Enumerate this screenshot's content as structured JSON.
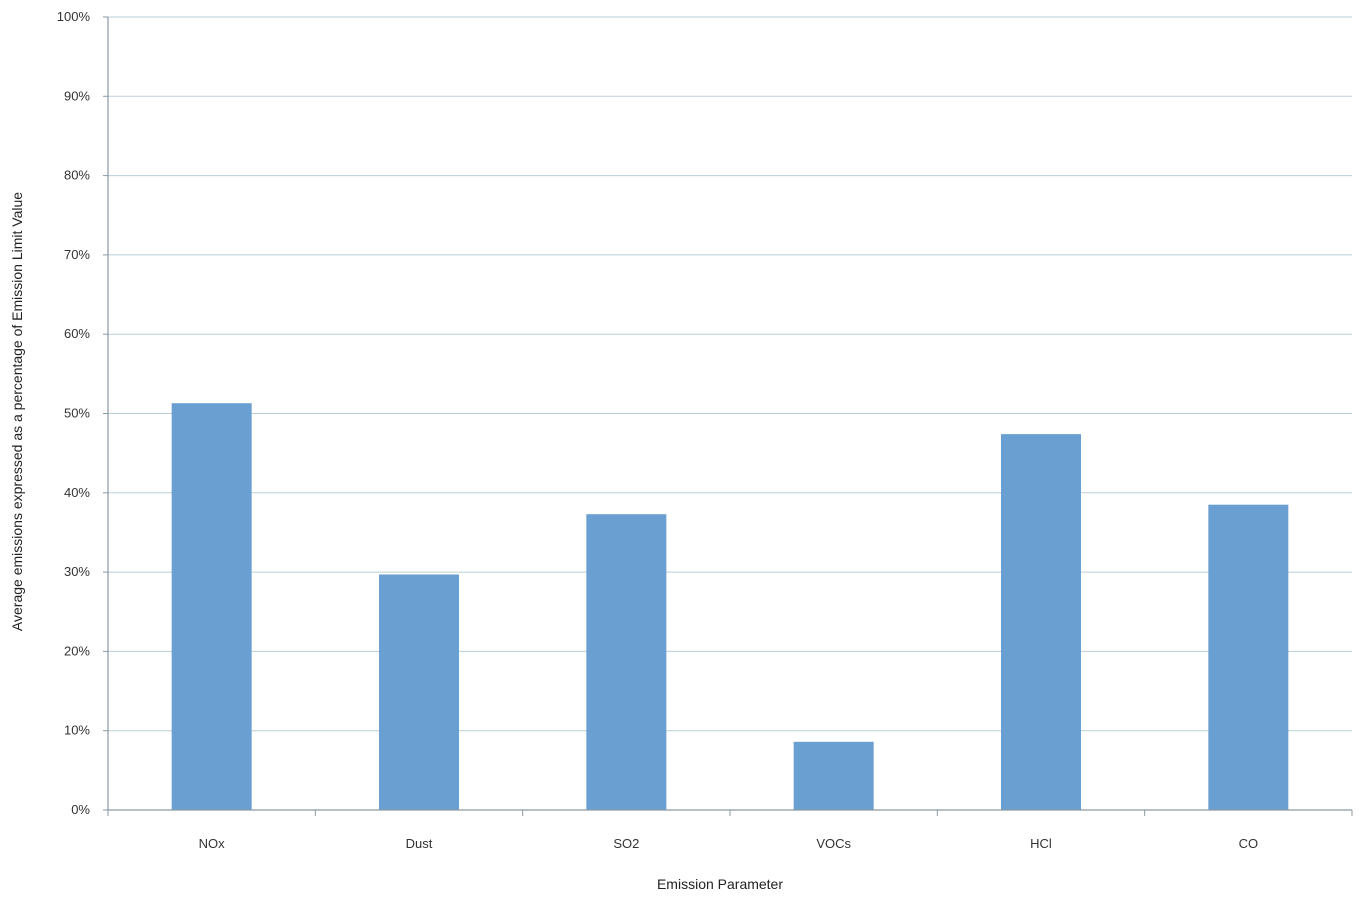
{
  "chart_data": {
    "type": "bar",
    "title": "",
    "xlabel": "Emission Parameter",
    "ylabel": "Average emissions expressed as a percentage of Emission Limit Value",
    "categories": [
      "NOx",
      "Dust",
      "SO2",
      "VOCs",
      "HCl",
      "CO"
    ],
    "values": [
      51.3,
      29.7,
      37.3,
      8.6,
      47.4,
      38.5
    ],
    "ylim": [
      0,
      100
    ],
    "yticks": [
      0,
      10,
      20,
      30,
      40,
      50,
      60,
      70,
      80,
      90,
      100
    ],
    "ytick_labels": [
      "0%",
      "10%",
      "20%",
      "30%",
      "40%",
      "50%",
      "60%",
      "70%",
      "80%",
      "90%",
      "100%"
    ],
    "value_unit": "%",
    "grid": true,
    "legend": "none",
    "bar_color": "#6a9fd2"
  }
}
